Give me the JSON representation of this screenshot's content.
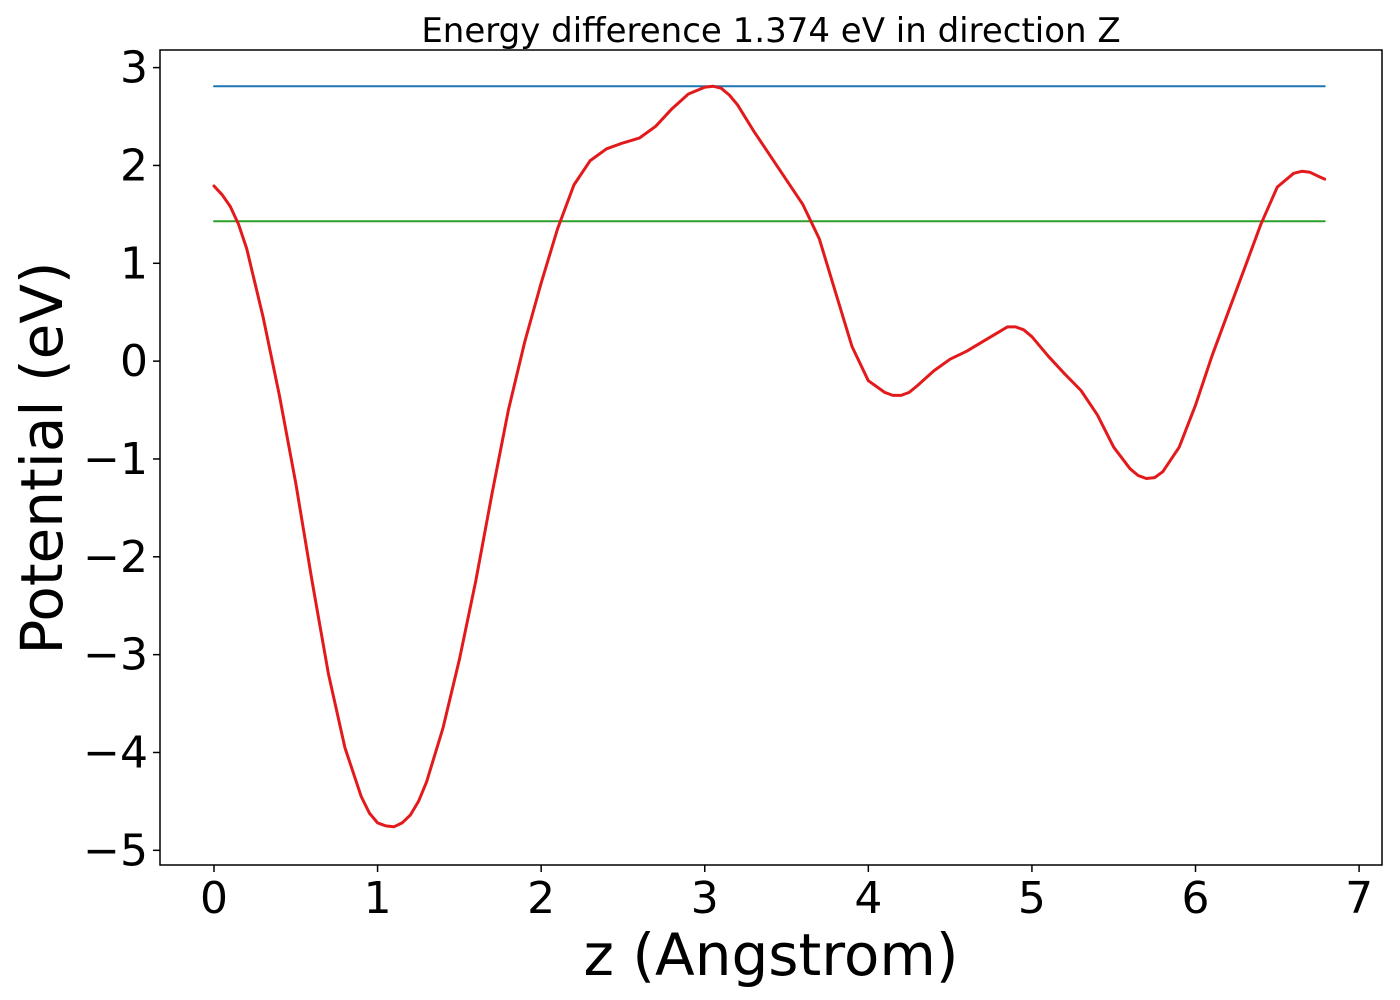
{
  "chart_data": {
    "type": "line",
    "title": "Energy difference 1.374 eV in direction Z",
    "xlabel": "z (Angstrom)",
    "ylabel": "Potential (eV)",
    "xlim": [
      -0.33,
      7.14
    ],
    "ylim": [
      -5.15,
      3.18
    ],
    "xticks": [
      0,
      1,
      2,
      3,
      4,
      5,
      6,
      7
    ],
    "xtick_labels": [
      "0",
      "1",
      "2",
      "3",
      "4",
      "5",
      "6",
      "7"
    ],
    "yticks": [
      3,
      2,
      1,
      0,
      -1,
      -2,
      -3,
      -4,
      -5
    ],
    "ytick_labels": [
      "3",
      "2",
      "1",
      "0",
      "−1",
      "−2",
      "−3",
      "−4",
      "−5"
    ],
    "grid": false,
    "series": [
      {
        "color": "#1f77b4",
        "x": [
          0,
          6.79
        ],
        "y": [
          2.81,
          2.81
        ]
      },
      {
        "color": "#2ca02c",
        "x": [
          0,
          6.79
        ],
        "y": [
          1.43,
          1.43
        ]
      },
      {
        "color": "#e31a1c",
        "x": [
          0,
          0.05,
          0.1,
          0.15,
          0.2,
          0.3,
          0.4,
          0.5,
          0.6,
          0.7,
          0.8,
          0.9,
          0.95,
          1.0,
          1.05,
          1.1,
          1.15,
          1.2,
          1.25,
          1.3,
          1.4,
          1.5,
          1.6,
          1.7,
          1.8,
          1.9,
          2.0,
          2.1,
          2.2,
          2.3,
          2.4,
          2.5,
          2.6,
          2.7,
          2.8,
          2.9,
          3.0,
          3.05,
          3.1,
          3.15,
          3.2,
          3.3,
          3.4,
          3.5,
          3.6,
          3.7,
          3.8,
          3.9,
          4.0,
          4.1,
          4.15,
          4.2,
          4.25,
          4.3,
          4.4,
          4.5,
          4.6,
          4.7,
          4.8,
          4.85,
          4.9,
          4.95,
          5.0,
          5.1,
          5.2,
          5.3,
          5.4,
          5.5,
          5.6,
          5.65,
          5.7,
          5.75,
          5.8,
          5.9,
          6.0,
          6.1,
          6.2,
          6.3,
          6.4,
          6.5,
          6.6,
          6.65,
          6.7,
          6.75,
          6.79
        ],
        "y": [
          1.79,
          1.7,
          1.58,
          1.4,
          1.15,
          0.45,
          -0.35,
          -1.25,
          -2.25,
          -3.2,
          -3.95,
          -4.45,
          -4.62,
          -4.72,
          -4.75,
          -4.76,
          -4.72,
          -4.64,
          -4.5,
          -4.3,
          -3.75,
          -3.05,
          -2.25,
          -1.35,
          -0.5,
          0.2,
          0.8,
          1.35,
          1.8,
          2.05,
          2.17,
          2.23,
          2.28,
          2.4,
          2.58,
          2.73,
          2.8,
          2.81,
          2.79,
          2.72,
          2.62,
          2.35,
          2.1,
          1.85,
          1.6,
          1.25,
          0.7,
          0.15,
          -0.2,
          -0.32,
          -0.35,
          -0.35,
          -0.32,
          -0.25,
          -0.1,
          0.02,
          0.1,
          0.2,
          0.3,
          0.35,
          0.35,
          0.32,
          0.25,
          0.05,
          -0.13,
          -0.3,
          -0.55,
          -0.88,
          -1.1,
          -1.17,
          -1.2,
          -1.19,
          -1.13,
          -0.88,
          -0.45,
          0.05,
          0.5,
          0.95,
          1.4,
          1.78,
          1.92,
          1.94,
          1.93,
          1.89,
          1.86
        ]
      }
    ]
  }
}
